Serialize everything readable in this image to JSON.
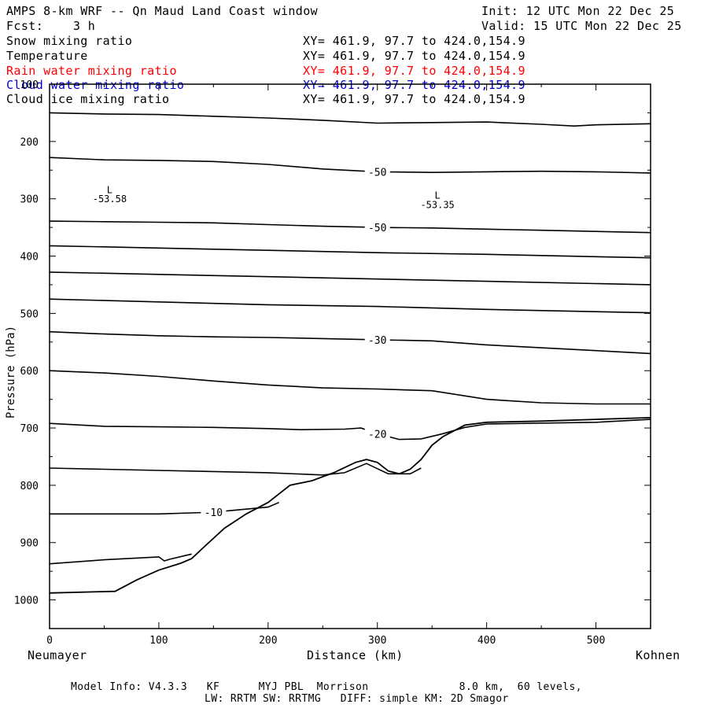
{
  "header": {
    "title": "AMPS 8-km WRF -- Qn Maud Land Coast window",
    "forecast": "Fcst:    3 h",
    "init": "Init: 12 UTC Mon 22 Dec 25",
    "valid": "Valid: 15 UTC Mon 22 Dec 25"
  },
  "fields": [
    {
      "label": "Snow mixing ratio",
      "xy": "XY= 461.9, 97.7 to 424.0,154.9",
      "color": "#000000"
    },
    {
      "label": "Temperature",
      "xy": "XY= 461.9, 97.7 to 424.0,154.9",
      "color": "#000000"
    },
    {
      "label": "Rain water mixing ratio",
      "xy": "XY= 461.9, 97.7 to 424.0,154.9",
      "color": "#ff0000"
    },
    {
      "label": "Cloud water mixing ratio",
      "xy": "XY= 461.9, 97.7 to 424.0,154.9",
      "color": "#0000cc"
    },
    {
      "label": "Cloud ice mixing ratio",
      "xy": "XY= 461.9, 97.7 to 424.0,154.9",
      "color": "#000000"
    }
  ],
  "footer": {
    "line1": "Model Info: V4.3.3   KF      MYJ PBL  Morrison              8.0 km,  60 levels,",
    "line2": "LW: RRTM SW: RRTMG   DIFF: simple KM: 2D Smagor"
  },
  "chart_data": {
    "type": "line",
    "xlabel": "Distance (km)",
    "ylabel": "Pressure (hPa)",
    "x_start_label": "Neumayer",
    "x_end_label": "Kohnen",
    "xlim": [
      0,
      550
    ],
    "ylim": [
      1050,
      100
    ],
    "x_ticks": [
      0,
      100,
      200,
      300,
      400,
      500
    ],
    "y_ticks": [
      100,
      200,
      300,
      400,
      500,
      600,
      700,
      800,
      900,
      1000
    ],
    "terrain": {
      "name": "",
      "x": [
        0,
        60,
        80,
        100,
        120,
        130,
        140,
        160,
        180,
        200,
        210,
        220,
        240,
        260,
        280,
        290,
        300,
        310,
        320,
        330,
        340,
        350,
        360,
        380,
        400,
        450,
        500,
        550
      ],
      "y": [
        988,
        985,
        965,
        948,
        936,
        928,
        910,
        875,
        850,
        830,
        815,
        800,
        792,
        778,
        760,
        755,
        760,
        775,
        780,
        772,
        755,
        730,
        715,
        695,
        690,
        688,
        685,
        682
      ]
    },
    "series": [
      {
        "label": "",
        "x": [
          0,
          50,
          100,
          150,
          200,
          250,
          300,
          350,
          400,
          450,
          480,
          500,
          550
        ],
        "y": [
          150,
          152,
          153,
          156,
          159,
          163,
          168,
          167,
          166,
          170,
          173,
          171,
          169
        ]
      },
      {
        "label": "-50",
        "x": [
          0,
          50,
          100,
          150,
          200,
          250,
          300,
          350,
          400,
          450,
          500,
          550
        ],
        "y": [
          228,
          232,
          233,
          235,
          240,
          248,
          253,
          254,
          253,
          252,
          253,
          255
        ]
      },
      {
        "label": "-50",
        "x": [
          0,
          50,
          100,
          150,
          200,
          250,
          300,
          350,
          400,
          450,
          500,
          550
        ],
        "y": [
          339,
          340,
          341,
          342,
          345,
          348,
          350,
          351,
          353,
          355,
          357,
          359
        ]
      },
      {
        "label": "",
        "x": [
          0,
          100,
          200,
          300,
          400,
          500,
          550
        ],
        "y": [
          382,
          386,
          390,
          394,
          397,
          401,
          403
        ]
      },
      {
        "label": "",
        "x": [
          0,
          100,
          200,
          300,
          400,
          500,
          550
        ],
        "y": [
          428,
          432,
          436,
          440,
          444,
          448,
          450
        ]
      },
      {
        "label": "",
        "x": [
          0,
          100,
          200,
          300,
          400,
          500,
          550
        ],
        "y": [
          475,
          480,
          485,
          488,
          493,
          497,
          499
        ]
      },
      {
        "label": "-30",
        "x": [
          0,
          50,
          100,
          150,
          200,
          250,
          300,
          350,
          400,
          450,
          500,
          550
        ],
        "y": [
          532,
          536,
          539,
          541,
          542,
          544,
          546,
          548,
          555,
          560,
          565,
          570
        ]
      },
      {
        "label": "",
        "x": [
          0,
          50,
          100,
          150,
          200,
          250,
          300,
          350,
          400,
          450,
          500,
          550
        ],
        "y": [
          600,
          604,
          610,
          618,
          625,
          630,
          632,
          635,
          650,
          656,
          658,
          658
        ]
      },
      {
        "label": "-20",
        "x": [
          0,
          50,
          100,
          150,
          200,
          230,
          270,
          285,
          300,
          320,
          340,
          360,
          380,
          400,
          500,
          550
        ],
        "y": [
          692,
          697,
          698,
          699,
          701,
          703,
          702,
          700,
          710,
          720,
          719,
          710,
          699,
          693,
          690,
          685
        ]
      },
      {
        "label": "",
        "x": [
          0,
          100,
          200,
          250,
          270,
          290,
          310,
          330,
          340
        ],
        "y": [
          770,
          774,
          778,
          782,
          778,
          762,
          780,
          780,
          770
        ]
      },
      {
        "label": "-10",
        "x": [
          0,
          50,
          100,
          150,
          200,
          210
        ],
        "y": [
          850,
          850,
          850,
          847,
          838,
          830
        ]
      },
      {
        "label": "",
        "x": [
          0,
          50,
          100,
          105,
          110,
          130
        ],
        "y": [
          937,
          930,
          925,
          932,
          929,
          920
        ]
      }
    ],
    "annotations": [
      {
        "text": "L",
        "x": 55,
        "y": 290
      },
      {
        "text": "-53.58",
        "x": 55,
        "y": 306
      },
      {
        "text": "L",
        "x": 355,
        "y": 300
      },
      {
        "text": "-53.35",
        "x": 355,
        "y": 316
      }
    ]
  }
}
